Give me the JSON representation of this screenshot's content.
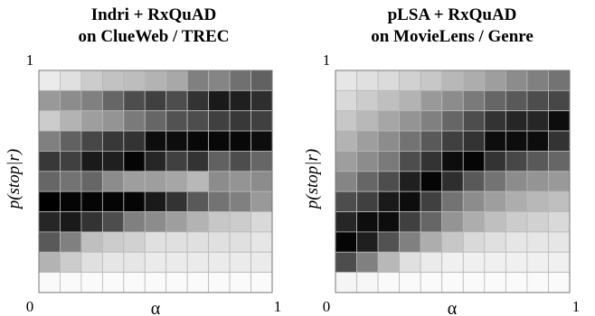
{
  "chart_data": [
    {
      "type": "heatmap",
      "title": [
        "Indri + RxQuAD",
        "on ClueWeb / TREC"
      ],
      "xlabel": "α",
      "ylabel": "p(stop|r)",
      "x_ticks": [
        "0",
        "1"
      ],
      "y_ticks": [
        "0",
        "1"
      ],
      "xlim": [
        0,
        1
      ],
      "ylim": [
        0,
        1
      ],
      "grid": true,
      "scale": "0 = black, 1 = white",
      "values": [
        [
          0.92,
          0.88,
          0.8,
          0.76,
          0.74,
          0.7,
          0.66,
          0.5,
          0.52,
          0.44,
          0.38
        ],
        [
          0.6,
          0.55,
          0.5,
          0.4,
          0.3,
          0.25,
          0.3,
          0.2,
          0.1,
          0.12,
          0.18
        ],
        [
          0.8,
          0.7,
          0.62,
          0.58,
          0.48,
          0.4,
          0.32,
          0.3,
          0.25,
          0.22,
          0.25
        ],
        [
          0.5,
          0.38,
          0.28,
          0.22,
          0.2,
          0.05,
          0.05,
          0.03,
          0.03,
          0.03,
          0.05
        ],
        [
          0.22,
          0.25,
          0.1,
          0.12,
          0.02,
          0.15,
          0.25,
          0.2,
          0.38,
          0.3,
          0.4
        ],
        [
          0.4,
          0.45,
          0.4,
          0.55,
          0.62,
          0.62,
          0.65,
          0.72,
          0.55,
          0.58,
          0.55
        ],
        [
          0.0,
          0.02,
          0.02,
          0.02,
          0.02,
          0.1,
          0.2,
          0.35,
          0.45,
          0.5,
          0.6
        ],
        [
          0.15,
          0.1,
          0.2,
          0.3,
          0.5,
          0.55,
          0.62,
          0.7,
          0.78,
          0.8,
          0.85
        ],
        [
          0.35,
          0.5,
          0.75,
          0.8,
          0.82,
          0.88,
          0.88,
          0.88,
          0.88,
          0.88,
          0.9
        ],
        [
          0.7,
          0.8,
          0.88,
          0.9,
          0.9,
          0.92,
          0.92,
          0.92,
          0.92,
          0.92,
          0.92
        ],
        [
          0.98,
          0.98,
          0.98,
          0.98,
          0.98,
          0.98,
          0.98,
          0.98,
          0.98,
          0.98,
          0.98
        ]
      ]
    },
    {
      "type": "heatmap",
      "title": [
        "pLSA + RxQuAD",
        "on MovieLens / Genre"
      ],
      "xlabel": "α",
      "ylabel": "p(stop|r)",
      "x_ticks": [
        "0",
        "1"
      ],
      "y_ticks": [
        "0",
        "1"
      ],
      "xlim": [
        0,
        1
      ],
      "ylim": [
        0,
        1
      ],
      "grid": true,
      "scale": "0 = black, 1 = white",
      "values": [
        [
          0.9,
          0.88,
          0.86,
          0.82,
          0.78,
          0.72,
          0.68,
          0.62,
          0.55,
          0.5,
          0.45
        ],
        [
          0.85,
          0.8,
          0.75,
          0.7,
          0.6,
          0.55,
          0.48,
          0.4,
          0.35,
          0.3,
          0.28
        ],
        [
          0.78,
          0.72,
          0.65,
          0.58,
          0.5,
          0.4,
          0.3,
          0.2,
          0.15,
          0.15,
          0.05
        ],
        [
          0.7,
          0.62,
          0.55,
          0.45,
          0.35,
          0.25,
          0.2,
          0.05,
          0.05,
          0.05,
          0.2
        ],
        [
          0.62,
          0.55,
          0.48,
          0.3,
          0.2,
          0.05,
          0.02,
          0.2,
          0.28,
          0.35,
          0.4
        ],
        [
          0.52,
          0.4,
          0.3,
          0.12,
          0.02,
          0.18,
          0.35,
          0.45,
          0.55,
          0.58,
          0.6
        ],
        [
          0.3,
          0.25,
          0.1,
          0.05,
          0.25,
          0.45,
          0.55,
          0.62,
          0.68,
          0.72,
          0.75
        ],
        [
          0.15,
          0.05,
          0.05,
          0.25,
          0.4,
          0.58,
          0.68,
          0.75,
          0.8,
          0.82,
          0.85
        ],
        [
          0.02,
          0.12,
          0.32,
          0.5,
          0.68,
          0.78,
          0.85,
          0.88,
          0.9,
          0.9,
          0.9
        ],
        [
          0.3,
          0.5,
          0.72,
          0.88,
          0.92,
          0.94,
          0.94,
          0.94,
          0.94,
          0.94,
          0.94
        ],
        [
          0.96,
          0.97,
          0.98,
          0.98,
          0.98,
          0.98,
          0.98,
          0.98,
          0.98,
          0.98,
          0.98
        ]
      ]
    }
  ]
}
